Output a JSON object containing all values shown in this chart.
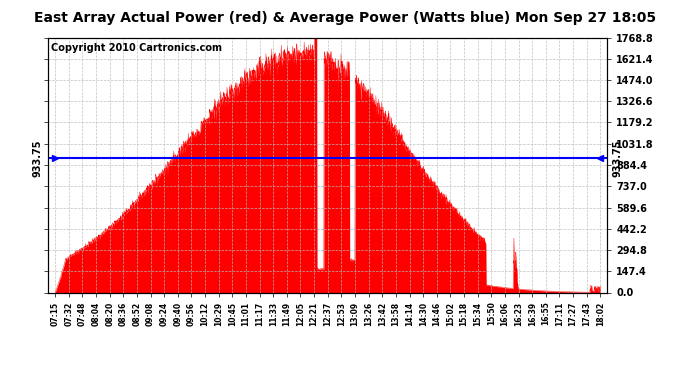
{
  "title": "East Array Actual Power (red) & Average Power (Watts blue) Mon Sep 27 18:05",
  "copyright": "Copyright 2010 Cartronics.com",
  "average_power": 933.75,
  "y_ticks": [
    0.0,
    147.4,
    294.8,
    442.2,
    589.6,
    737.0,
    884.4,
    1031.8,
    1179.2,
    1326.6,
    1474.0,
    1621.4,
    1768.8
  ],
  "ylim": [
    0,
    1768.8
  ],
  "x_labels": [
    "07:15",
    "07:32",
    "07:48",
    "08:04",
    "08:20",
    "08:36",
    "08:52",
    "09:08",
    "09:24",
    "09:40",
    "09:56",
    "10:12",
    "10:29",
    "10:45",
    "11:01",
    "11:17",
    "11:33",
    "11:49",
    "12:05",
    "12:21",
    "12:37",
    "12:53",
    "13:09",
    "13:26",
    "13:42",
    "13:58",
    "14:14",
    "14:30",
    "14:46",
    "15:02",
    "15:18",
    "15:34",
    "15:50",
    "16:06",
    "16:23",
    "16:39",
    "16:55",
    "17:11",
    "17:27",
    "17:43",
    "18:02"
  ],
  "title_fontsize": 10,
  "copyright_fontsize": 7,
  "avg_line_color": "blue",
  "fill_color": "red",
  "background_color": "white",
  "grid_color": "#bbbbbb"
}
